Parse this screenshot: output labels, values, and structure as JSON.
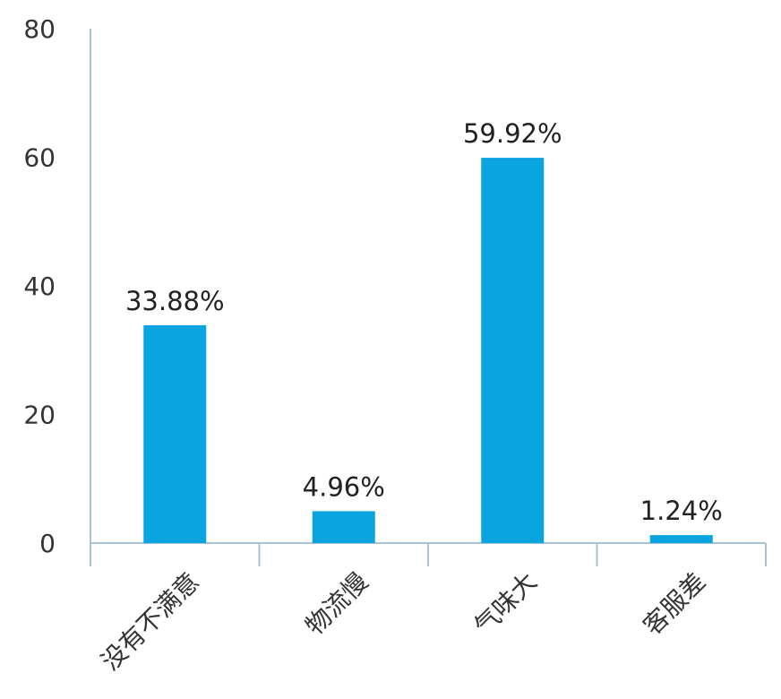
{
  "chart_data": {
    "type": "bar",
    "title": "",
    "xlabel": "",
    "ylabel": "",
    "categories": [
      "没有不满意",
      "物流慢",
      "气味大",
      "客服差"
    ],
    "values": [
      33.88,
      4.96,
      59.92,
      1.24
    ],
    "data_labels": [
      "33.88%",
      "4.96%",
      "59.92%",
      "1.24%"
    ],
    "y_ticks": [
      "0",
      "20",
      "40",
      "60",
      "80"
    ],
    "ylim": [
      0,
      80
    ],
    "grid": false,
    "legend": "none",
    "colors": {
      "bar": "#0aa5e0",
      "axis": "#a9c3d6"
    }
  }
}
